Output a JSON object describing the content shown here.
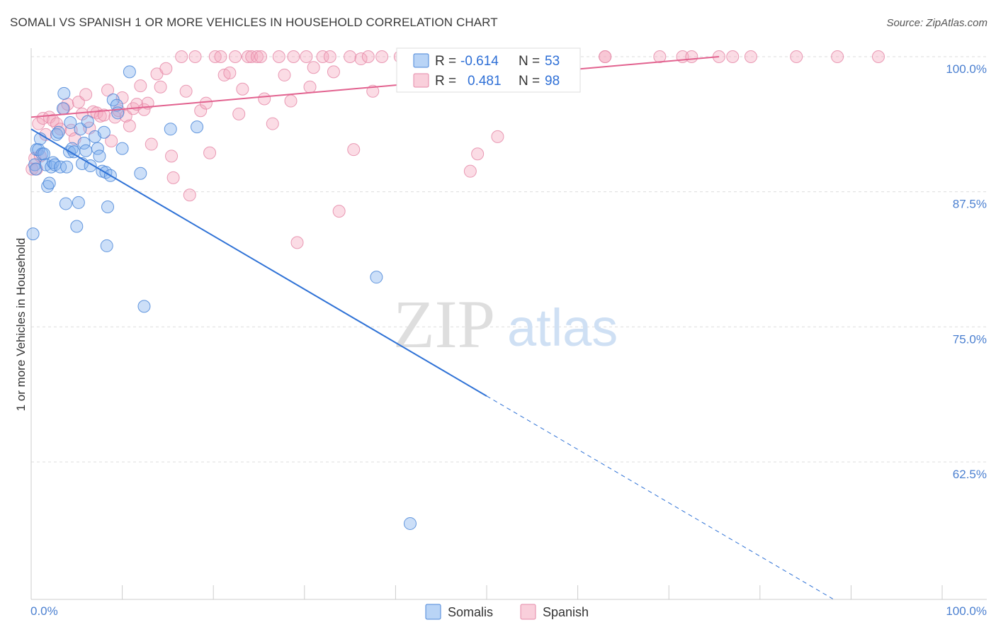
{
  "title": "SOMALI VS SPANISH 1 OR MORE VEHICLES IN HOUSEHOLD CORRELATION CHART",
  "source": "Source: ZipAtlas.com",
  "watermark": {
    "part1": "ZIP",
    "part2": "atlas"
  },
  "colors": {
    "somali": "#7fb0ee",
    "somali_stroke": "#4a86d8",
    "somali_line": "#2f72d6",
    "spanish": "#f4a7be",
    "spanish_stroke": "#e58aa8",
    "spanish_line": "#e2628f",
    "axis_label": "#4a7fd0",
    "grid": "#dddddd"
  },
  "legend": {
    "r_label": "R =",
    "n_label": "N =",
    "somali": {
      "r": "-0.614",
      "n": "53"
    },
    "spanish": {
      "r": "0.481",
      "n": "98"
    }
  },
  "bottom_legend": {
    "somali": "Somalis",
    "spanish": "Spanish"
  },
  "chart_data": {
    "type": "scatter",
    "title": "SOMALI VS SPANISH 1 OR MORE VEHICLES IN HOUSEHOLD CORRELATION CHART",
    "xlabel": "",
    "ylabel": "1 or more Vehicles in Household",
    "xlim": [
      0,
      100
    ],
    "ylim": [
      50,
      102
    ],
    "x_tick_labels": [
      "0.0%",
      "100.0%"
    ],
    "y_ticks": [
      {
        "value": 100,
        "label": "100.0%"
      },
      {
        "value": 87.5,
        "label": "87.5%"
      },
      {
        "value": 75,
        "label": "75.0%"
      },
      {
        "value": 62.5,
        "label": "62.5%"
      }
    ],
    "series": [
      {
        "name": "Somalis",
        "r": -0.614,
        "n": 53,
        "trend": {
          "x0": 0,
          "y0": 93.3,
          "x1": 50,
          "y1": 68.6,
          "dash_to_x": 88
        },
        "points": [
          [
            0.2,
            83.6
          ],
          [
            0.4,
            90.0
          ],
          [
            0.5,
            89.6
          ],
          [
            0.6,
            91.4
          ],
          [
            0.8,
            91.4
          ],
          [
            1.0,
            92.4
          ],
          [
            1.2,
            91.0
          ],
          [
            1.4,
            91.0
          ],
          [
            1.6,
            90.0
          ],
          [
            1.8,
            88.0
          ],
          [
            2.0,
            88.3
          ],
          [
            2.2,
            89.8
          ],
          [
            2.4,
            90.2
          ],
          [
            2.6,
            90.0
          ],
          [
            2.8,
            92.8
          ],
          [
            3.0,
            93.0
          ],
          [
            3.2,
            89.8
          ],
          [
            3.5,
            95.2
          ],
          [
            3.6,
            96.6
          ],
          [
            3.8,
            86.4
          ],
          [
            3.9,
            89.8
          ],
          [
            4.2,
            91.2
          ],
          [
            4.3,
            93.9
          ],
          [
            4.5,
            91.5
          ],
          [
            4.7,
            91.2
          ],
          [
            5.0,
            84.3
          ],
          [
            5.2,
            86.5
          ],
          [
            5.4,
            93.3
          ],
          [
            5.6,
            90.1
          ],
          [
            5.8,
            92.0
          ],
          [
            6.0,
            91.3
          ],
          [
            6.2,
            94.0
          ],
          [
            6.5,
            89.9
          ],
          [
            7.0,
            92.6
          ],
          [
            7.3,
            91.5
          ],
          [
            7.5,
            90.8
          ],
          [
            7.8,
            89.4
          ],
          [
            8.0,
            93.0
          ],
          [
            8.2,
            89.3
          ],
          [
            8.3,
            82.5
          ],
          [
            8.4,
            86.1
          ],
          [
            8.7,
            89.0
          ],
          [
            9.0,
            96.0
          ],
          [
            9.4,
            95.5
          ],
          [
            9.5,
            94.8
          ],
          [
            10.0,
            91.5
          ],
          [
            10.8,
            98.6
          ],
          [
            12.0,
            89.2
          ],
          [
            12.4,
            76.9
          ],
          [
            15.3,
            93.3
          ],
          [
            18.2,
            93.5
          ],
          [
            37.9,
            79.6
          ],
          [
            41.6,
            56.8
          ]
        ]
      },
      {
        "name": "Spanish",
        "r": 0.481,
        "n": 98,
        "trend": {
          "x0": 0,
          "y0": 94.4,
          "x1": 75.5,
          "y1": 100.0
        },
        "points": [
          [
            0.1,
            89.6
          ],
          [
            0.4,
            90.6
          ],
          [
            0.6,
            89.6
          ],
          [
            0.8,
            93.8
          ],
          [
            1.0,
            90.8
          ],
          [
            1.3,
            94.3
          ],
          [
            1.6,
            92.8
          ],
          [
            2.0,
            94.4
          ],
          [
            2.4,
            94.1
          ],
          [
            2.8,
            93.8
          ],
          [
            3.2,
            93.3
          ],
          [
            3.6,
            95.2
          ],
          [
            4.0,
            95.6
          ],
          [
            4.4,
            93.2
          ],
          [
            4.8,
            92.4
          ],
          [
            5.2,
            95.8
          ],
          [
            5.6,
            94.7
          ],
          [
            6.0,
            96.5
          ],
          [
            6.4,
            93.4
          ],
          [
            6.8,
            94.9
          ],
          [
            7.2,
            94.8
          ],
          [
            7.6,
            94.5
          ],
          [
            8.0,
            94.6
          ],
          [
            8.4,
            96.9
          ],
          [
            8.8,
            92.2
          ],
          [
            9.2,
            94.4
          ],
          [
            9.6,
            95.0
          ],
          [
            10.0,
            96.2
          ],
          [
            10.4,
            94.5
          ],
          [
            10.8,
            93.6
          ],
          [
            11.2,
            95.2
          ],
          [
            11.6,
            95.6
          ],
          [
            12.0,
            97.3
          ],
          [
            12.4,
            95.1
          ],
          [
            12.8,
            95.7
          ],
          [
            13.2,
            91.9
          ],
          [
            13.8,
            98.4
          ],
          [
            14.2,
            97.2
          ],
          [
            14.8,
            98.9
          ],
          [
            15.4,
            90.8
          ],
          [
            15.6,
            88.8
          ],
          [
            16.5,
            100.0
          ],
          [
            17.0,
            96.8
          ],
          [
            17.4,
            87.2
          ],
          [
            18.0,
            100.0
          ],
          [
            18.6,
            95.0
          ],
          [
            19.2,
            95.7
          ],
          [
            19.6,
            91.1
          ],
          [
            20.2,
            100.0
          ],
          [
            20.8,
            100.0
          ],
          [
            21.2,
            98.3
          ],
          [
            21.8,
            98.5
          ],
          [
            22.4,
            100.0
          ],
          [
            22.8,
            94.7
          ],
          [
            23.2,
            97.0
          ],
          [
            23.8,
            100.0
          ],
          [
            24.2,
            100.0
          ],
          [
            24.8,
            100.0
          ],
          [
            25.2,
            100.0
          ],
          [
            25.6,
            96.1
          ],
          [
            26.5,
            93.8
          ],
          [
            27.2,
            100.0
          ],
          [
            27.8,
            98.3
          ],
          [
            28.5,
            95.9
          ],
          [
            28.8,
            100.0
          ],
          [
            29.2,
            82.8
          ],
          [
            30.2,
            100.0
          ],
          [
            30.6,
            97.2
          ],
          [
            31.0,
            99.0
          ],
          [
            32.0,
            100.0
          ],
          [
            32.8,
            100.0
          ],
          [
            33.2,
            98.6
          ],
          [
            33.8,
            85.7
          ],
          [
            35.0,
            100.0
          ],
          [
            35.4,
            91.4
          ],
          [
            36.2,
            99.8
          ],
          [
            37.0,
            100.0
          ],
          [
            37.5,
            96.8
          ],
          [
            38.5,
            100.0
          ],
          [
            40.5,
            100.0
          ],
          [
            41.5,
            99.6
          ],
          [
            46.5,
            100.0
          ],
          [
            48.2,
            89.4
          ],
          [
            48.6,
            100.0
          ],
          [
            49.0,
            91.0
          ],
          [
            51.2,
            92.6
          ],
          [
            55.5,
            100.0
          ],
          [
            63.0,
            100.0
          ],
          [
            69.0,
            100.0
          ],
          [
            71.5,
            100.0
          ],
          [
            72.5,
            100.0
          ],
          [
            75.5,
            100.0
          ],
          [
            77.0,
            100.0
          ],
          [
            79.0,
            100.0
          ],
          [
            88.5,
            100.0
          ],
          [
            84.0,
            100.0
          ],
          [
            93.0,
            100.0
          ],
          [
            63.0,
            100.0
          ]
        ]
      }
    ]
  }
}
